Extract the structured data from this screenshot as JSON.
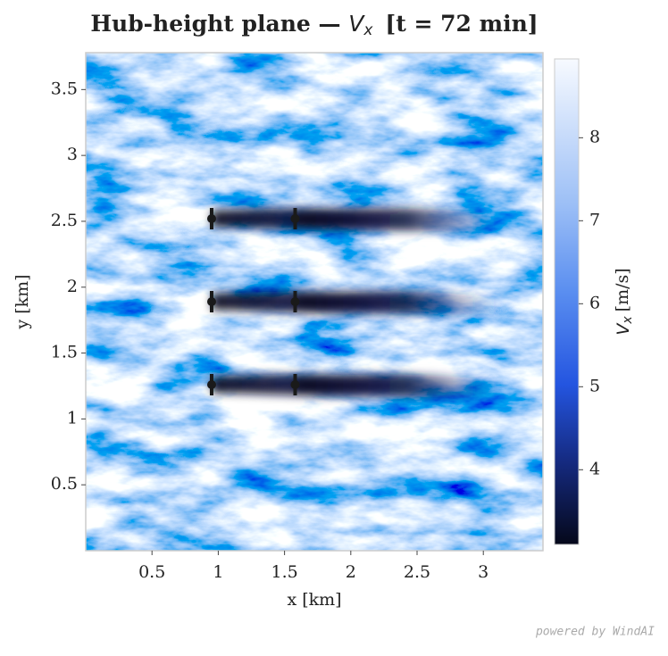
{
  "chart_data": {
    "type": "heatmap",
    "title": "Hub-height plane —",
    "title_symbol": "V",
    "title_subscript": "x",
    "title_suffix": "[t = 72 min]",
    "x_label": "x [km]",
    "y_label": "y [km]",
    "xlim": [
      0,
      3.45
    ],
    "ylim": [
      0,
      3.78
    ],
    "xticks": [
      0.5,
      1.0,
      1.5,
      2.0,
      2.5,
      3.0
    ],
    "yticks": [
      0.5,
      1.0,
      1.5,
      2.0,
      2.5,
      3.0,
      3.5
    ],
    "clim": [
      3.1,
      8.95
    ],
    "cticks": [
      4,
      5,
      6,
      7,
      8
    ],
    "colorbar_symbol": "V",
    "colorbar_subscript": "x",
    "colorbar_unit": "[m/s]",
    "series": [
      {
        "name": "turbines",
        "color": "#1a1a1a",
        "x": [
          0.95,
          1.58,
          0.95,
          1.58,
          0.95,
          1.58
        ],
        "values": [
          2.52,
          2.52,
          1.89,
          1.89,
          1.26,
          1.26
        ]
      }
    ],
    "footer": "powered by WindAI"
  }
}
